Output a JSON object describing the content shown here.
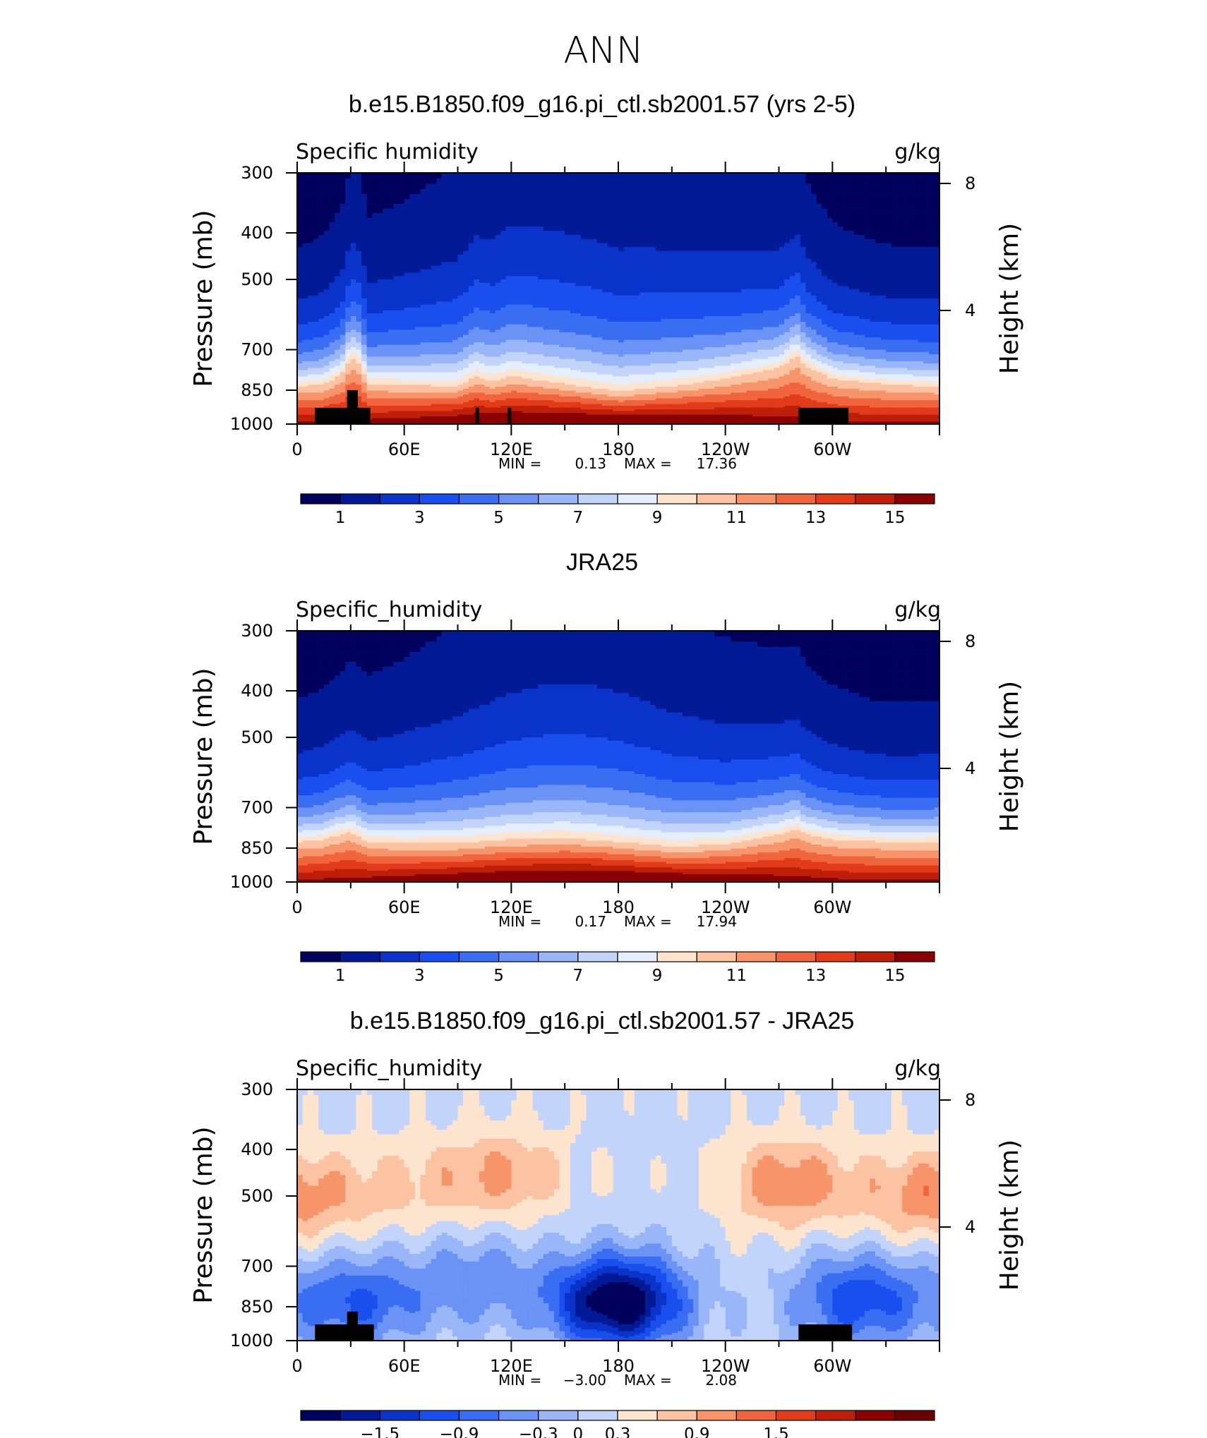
{
  "page_title": "ANN",
  "chart_data": [
    {
      "type": "heatmap",
      "title": "b.e15.B1850.f09_g16.pi_ctl.sb2001.57 (yrs 2-5)",
      "variable_label": "Specific humidity",
      "units_label": "g/kg",
      "ylabel": "Pressure (mb)",
      "y2label": "Height (km)",
      "x_tick_labels": [
        "0",
        "60E",
        "120E",
        "180",
        "120W",
        "60W"
      ],
      "y_tick_labels": [
        "300",
        "400",
        "500",
        "700",
        "850",
        "1000"
      ],
      "y2_tick_labels": [
        "8",
        "4"
      ],
      "min_label": "MIN =",
      "min_value": "0.13",
      "max_label": "MAX =",
      "max_value": "17.36",
      "colorbar_labels": [
        "1",
        "3",
        "5",
        "7",
        "9",
        "11",
        "13",
        "15"
      ],
      "colorbar_levels": [
        1,
        2,
        3,
        4,
        5,
        6,
        7,
        8,
        9,
        10,
        11,
        12,
        13,
        14,
        15
      ],
      "longitudes": [
        0,
        15,
        25,
        30,
        35,
        40,
        60,
        90,
        100,
        110,
        120,
        150,
        180,
        210,
        240,
        270,
        280,
        285,
        300,
        330,
        360
      ],
      "boundary_layer_top_mb": [
        840,
        830,
        790,
        730,
        750,
        830,
        835,
        838,
        800,
        820,
        800,
        830,
        860,
        840,
        810,
        770,
        725,
        760,
        810,
        830,
        840
      ],
      "topography_blocks": [
        {
          "lon_start": 10,
          "lon_end": 41,
          "top_mb": 925
        },
        {
          "lon_start": 28,
          "lon_end": 34,
          "top_mb": 850
        },
        {
          "lon_start": 100,
          "lon_end": 102,
          "top_mb": 925
        },
        {
          "lon_start": 118,
          "lon_end": 120,
          "top_mb": 925
        },
        {
          "lon_start": 281,
          "lon_end": 309,
          "top_mb": 925
        }
      ]
    },
    {
      "type": "heatmap",
      "title": "JRA25",
      "variable_label": "Specific_humidity",
      "units_label": "g/kg",
      "ylabel": "Pressure (mb)",
      "y2label": "Height (km)",
      "x_tick_labels": [
        "0",
        "60E",
        "120E",
        "180",
        "120W",
        "60W"
      ],
      "y_tick_labels": [
        "300",
        "400",
        "500",
        "700",
        "850",
        "1000"
      ],
      "y2_tick_labels": [
        "8",
        "4"
      ],
      "min_label": "MIN =",
      "min_value": "0.17",
      "max_label": "MAX =",
      "max_value": "17.94",
      "colorbar_labels": [
        "1",
        "3",
        "5",
        "7",
        "9",
        "11",
        "13",
        "15"
      ],
      "colorbar_levels": [
        1,
        2,
        3,
        4,
        5,
        6,
        7,
        8,
        9,
        10,
        11,
        12,
        13,
        14,
        15
      ],
      "longitudes": [
        0,
        15,
        25,
        30,
        35,
        40,
        60,
        90,
        120,
        150,
        180,
        210,
        240,
        270,
        280,
        285,
        300,
        330,
        360
      ],
      "boundary_layer_top_mb": [
        830,
        820,
        800,
        790,
        810,
        830,
        835,
        835,
        820,
        815,
        830,
        850,
        840,
        800,
        780,
        800,
        820,
        830,
        830
      ],
      "topography_blocks": []
    },
    {
      "type": "heatmap",
      "title": "b.e15.B1850.f09_g16.pi_ctl.sb2001.57 - JRA25",
      "variable_label": "Specific_humidity",
      "units_label": "g/kg",
      "ylabel": "Pressure (mb)",
      "y2label": "Height (km)",
      "x_tick_labels": [
        "0",
        "60E",
        "120E",
        "180",
        "120W",
        "60W"
      ],
      "y_tick_labels": [
        "300",
        "400",
        "500",
        "700",
        "850",
        "1000"
      ],
      "y2_tick_labels": [
        "8",
        "4"
      ],
      "min_label": "MIN =",
      "min_value": "−3.00",
      "max_label": "MAX =",
      "max_value": "2.08",
      "colorbar_labels": [
        "−1.5",
        "−0.9",
        "−0.3",
        "0",
        "0.3",
        "0.9",
        "1.5"
      ],
      "colorbar_levels": [
        -2.1,
        -1.8,
        -1.5,
        -1.2,
        -0.9,
        -0.6,
        -0.3,
        0,
        0.3,
        0.6,
        0.9,
        1.2,
        1.5,
        1.8,
        2.1
      ],
      "anomalies": [
        {
          "lon": 5,
          "p": 500,
          "sign": 1,
          "amp": 0.55
        },
        {
          "lon": 33,
          "p": 830,
          "sign": -1,
          "amp": 1.1
        },
        {
          "lon": 60,
          "p": 480,
          "sign": 1,
          "amp": 0.4
        },
        {
          "lon": 115,
          "p": 450,
          "sign": 1,
          "amp": 0.75
        },
        {
          "lon": 100,
          "p": 750,
          "sign": -1,
          "amp": 0.7
        },
        {
          "lon": 180,
          "p": 830,
          "sign": -1,
          "amp": 2.4
        },
        {
          "lon": 275,
          "p": 470,
          "sign": 1,
          "amp": 0.95
        },
        {
          "lon": 315,
          "p": 820,
          "sign": -1,
          "amp": 1.3
        },
        {
          "lon": 345,
          "p": 500,
          "sign": 1,
          "amp": 0.45
        }
      ],
      "topography_blocks": [
        {
          "lon_start": 10,
          "lon_end": 43,
          "top_mb": 925
        },
        {
          "lon_start": 28,
          "lon_end": 34,
          "top_mb": 870
        },
        {
          "lon_start": 281,
          "lon_end": 311,
          "top_mb": 925
        }
      ]
    }
  ],
  "colors": {
    "humidity_palette": [
      "#00005d",
      "#031a96",
      "#0a34c9",
      "#1a4fef",
      "#3a6ef2",
      "#6b93f5",
      "#98b6f8",
      "#c3d4fb",
      "#e4eefc",
      "#fde4cf",
      "#fbc3a2",
      "#f7946a",
      "#f0653d",
      "#e23b1a",
      "#bd1f08",
      "#8a0000"
    ],
    "difference_palette": [
      "#00005d",
      "#031a96",
      "#0a34c9",
      "#1a4fef",
      "#3a6ef2",
      "#6b93f5",
      "#98b6f8",
      "#c3d4fb",
      "#fde4cf",
      "#fbc3a2",
      "#f7946a",
      "#f0653d",
      "#e23b1a",
      "#bd1f08",
      "#8a0000",
      "#6a0000"
    ],
    "topography": "#000000"
  }
}
